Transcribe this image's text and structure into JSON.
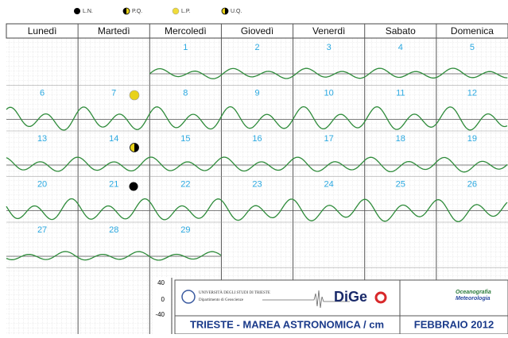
{
  "legend": [
    "L.N.",
    "P.Q.",
    "L.P.",
    "U.Q."
  ],
  "weekdays": [
    "Lunedì",
    "Martedì",
    "Mercoledì",
    "Giovedì",
    "Venerdì",
    "Sabato",
    "Domenica"
  ],
  "weeks": [
    [
      1,
      2,
      3,
      4,
      5
    ],
    [
      6,
      7,
      8,
      9,
      10,
      11,
      12
    ],
    [
      13,
      14,
      15,
      16,
      17,
      18,
      19
    ],
    [
      20,
      21,
      22,
      23,
      24,
      25,
      26
    ],
    [
      27,
      28,
      29
    ]
  ],
  "scale": [
    40,
    0,
    -40
  ],
  "footer": {
    "university": "UNIVERSITÀ DEGLI STUDI DI TRIESTE",
    "department": "Dipartimento di Geoscienze",
    "logo": "DiGe",
    "logo_right_1": "Oceanografia",
    "logo_right_2": "Meteorologia",
    "title": "TRIESTE - MAREA ASTRONOMICA / cm",
    "month": "FEBBRAIO 2012"
  }
}
